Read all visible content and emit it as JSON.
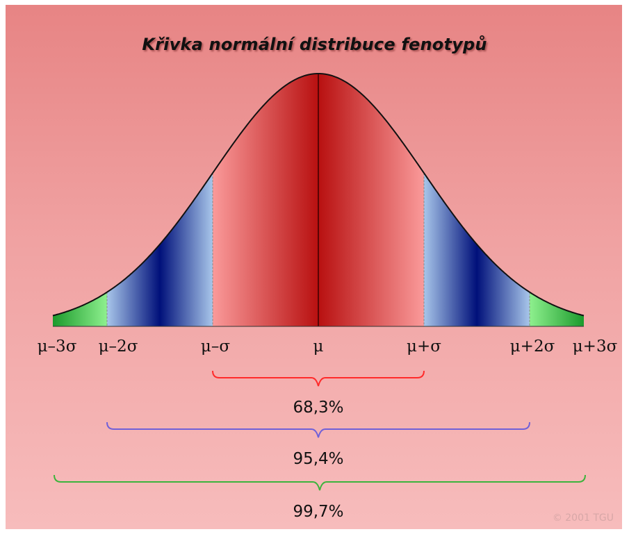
{
  "title": "Křivka normální distribuce fenotypů",
  "tick_labels": [
    "μ–3σ",
    "μ–2σ",
    "μ–σ",
    "μ",
    "μ+σ",
    "μ+2σ",
    "μ+3σ"
  ],
  "intervals": [
    {
      "label": "68,3%",
      "color": "#ff2a2a"
    },
    {
      "label": "95,4%",
      "color": "#7060d8"
    },
    {
      "label": "99,7%",
      "color": "#3cb33c"
    }
  ],
  "region_colors": {
    "inner": "#c81818",
    "middle": "#00107a",
    "outer": "#1c9a2c"
  },
  "copyright": "© 2001 TGU"
}
